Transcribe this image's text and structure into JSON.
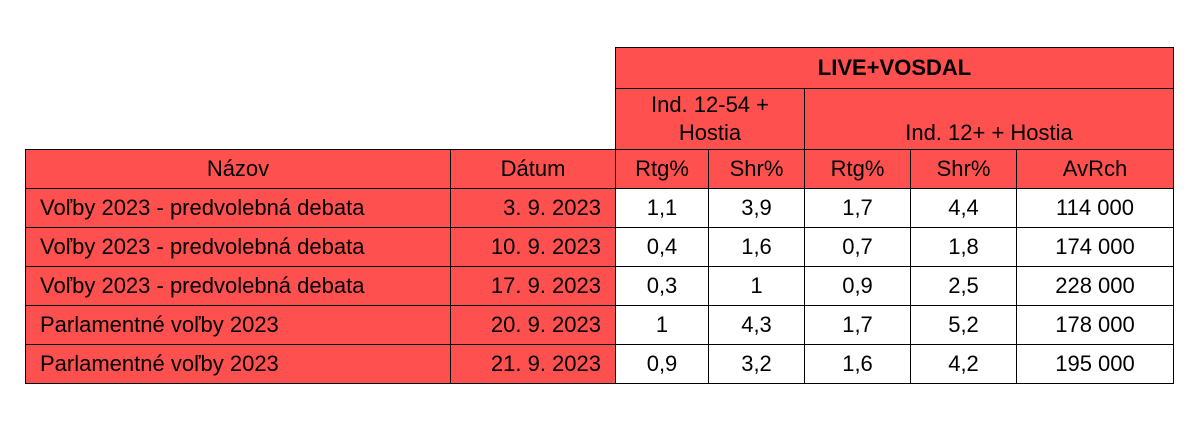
{
  "header": {
    "group_title": "LIVE+VOSDAL",
    "subgroup_a": "Ind. 12-54 + Hostia",
    "subgroup_b": "Ind. 12+ + Hostia"
  },
  "columns": {
    "name": "Názov",
    "date": "Dátum",
    "rtg_a": "Rtg%",
    "shr_a": "Shr%",
    "rtg_b": "Rtg%",
    "shr_b": "Shr%",
    "avrch": "AvRch"
  },
  "rows": [
    {
      "name": "Voľby 2023 - predvolebná debata",
      "date": "3. 9. 2023",
      "rtg_a": "1,1",
      "shr_a": "3,9",
      "rtg_b": "1,7",
      "shr_b": "4,4",
      "avrch": "114 000"
    },
    {
      "name": "Voľby 2023 - predvolebná debata",
      "date": "10. 9. 2023",
      "rtg_a": "0,4",
      "shr_a": "1,6",
      "rtg_b": "0,7",
      "shr_b": "1,8",
      "avrch": "174 000"
    },
    {
      "name": "Voľby 2023 - predvolebná debata",
      "date": "17. 9. 2023",
      "rtg_a": "0,3",
      "shr_a": "1",
      "rtg_b": "0,9",
      "shr_b": "2,5",
      "avrch": "228 000"
    },
    {
      "name": "Parlamentné voľby 2023",
      "date": "20. 9. 2023",
      "rtg_a": "1",
      "shr_a": "4,3",
      "rtg_b": "1,7",
      "shr_b": "5,2",
      "avrch": "178 000"
    },
    {
      "name": "Parlamentné voľby 2023",
      "date": "21. 9. 2023",
      "rtg_a": "0,9",
      "shr_a": "3,2",
      "rtg_b": "1,6",
      "shr_b": "4,2",
      "avrch": "195 000"
    }
  ],
  "colors": {
    "header_fill": "#ff5050",
    "cell_fill": "#ffffff",
    "border": "#000000"
  }
}
